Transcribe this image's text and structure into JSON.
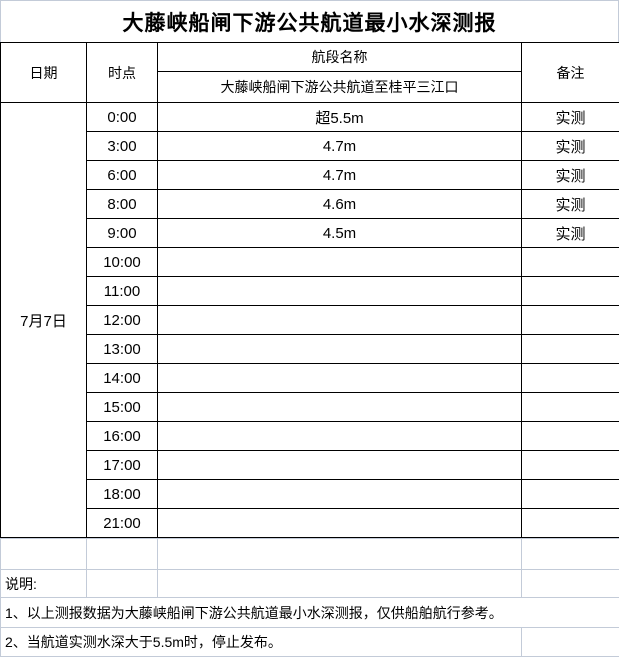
{
  "title": "大藤峡船闸下游公共航道最小水深测报",
  "header": {
    "date": "日期",
    "time": "时点",
    "segment_group": "航段名称",
    "segment_name": "大藤峡船闸下游公共航道至桂平三江口",
    "remark": "备注"
  },
  "date_value": "7月7日",
  "rows": [
    {
      "time": "0:00",
      "depth": "超5.5m",
      "remark": "实测"
    },
    {
      "time": "3:00",
      "depth": "4.7m",
      "remark": "实测"
    },
    {
      "time": "6:00",
      "depth": "4.7m",
      "remark": "实测"
    },
    {
      "time": "8:00",
      "depth": "4.6m",
      "remark": "实测"
    },
    {
      "time": "9:00",
      "depth": "4.5m",
      "remark": "实测"
    },
    {
      "time": "10:00",
      "depth": "",
      "remark": ""
    },
    {
      "time": "11:00",
      "depth": "",
      "remark": ""
    },
    {
      "time": "12:00",
      "depth": "",
      "remark": ""
    },
    {
      "time": "13:00",
      "depth": "",
      "remark": ""
    },
    {
      "time": "14:00",
      "depth": "",
      "remark": ""
    },
    {
      "time": "15:00",
      "depth": "",
      "remark": ""
    },
    {
      "time": "16:00",
      "depth": "",
      "remark": ""
    },
    {
      "time": "17:00",
      "depth": "",
      "remark": ""
    },
    {
      "time": "18:00",
      "depth": "",
      "remark": ""
    },
    {
      "time": "21:00",
      "depth": "",
      "remark": ""
    }
  ],
  "notes": {
    "label": "说明:",
    "line1": "1、以上测报数据为大藤峡船闸下游公共航道最小水深测报，仅供船舶航行参考。",
    "line2": "2、当航道实测水深大于5.5m时，停止发布。"
  },
  "colors": {
    "table_border": "#000000",
    "grid_border": "#c3cbd8",
    "text": "#000000",
    "background": "#ffffff"
  }
}
